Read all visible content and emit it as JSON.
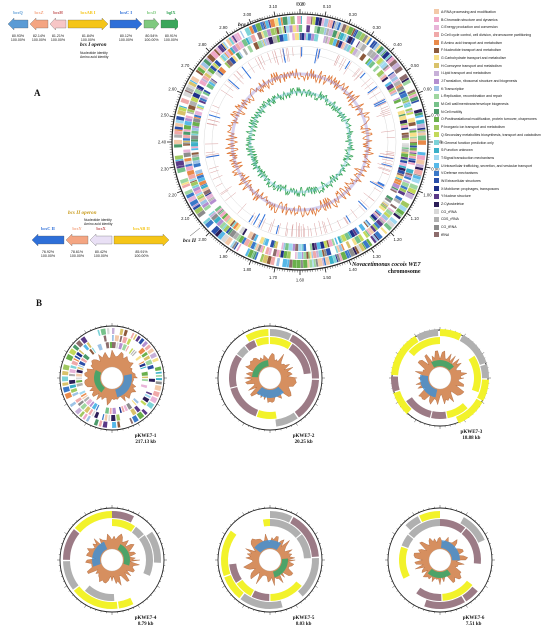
{
  "panel_a": {
    "label": "A",
    "operon_top": {
      "title": "bcs I operon",
      "identity_note_1": "Nucleotide identity",
      "identity_note_2": "Amino acid identity",
      "genes": [
        {
          "name": "bcsQ",
          "nt": "80.93%",
          "aa": "100.00%",
          "color": "#5a9bd5"
        },
        {
          "name": "bcsZ",
          "nt": "82.14%",
          "aa": "100.00%",
          "color": "#f4a582"
        },
        {
          "name": "bcsH",
          "nt": "81.21%",
          "aa": "100.00%",
          "color": "#f7c6c6"
        },
        {
          "name": "bcsAB I",
          "nt": "81.84%",
          "aa": "100.00%",
          "color": "#f5c518"
        },
        {
          "name": "bcsC I",
          "nt": "80.12%",
          "aa": "100.00%",
          "color": "#2e6fd8"
        },
        {
          "name": "bcsD",
          "nt": "80.54%",
          "aa": "100.00%",
          "color": "#7fc97f"
        },
        {
          "name": "bglX",
          "nt": "80.91%",
          "aa": "100.00%",
          "color": "#3aa65a"
        }
      ]
    },
    "operon_bottom": {
      "title": "bcs II operon",
      "identity_note_1": "Nucleotide identity",
      "identity_note_2": "Amino acid identity",
      "genes": [
        {
          "name": "bcsC II",
          "nt": "76.92%",
          "aa": "100.00%",
          "color": "#2e6fd8"
        },
        {
          "name": "bcsY",
          "nt": "78.61%",
          "aa": "100.00%",
          "color": "#f4a582"
        },
        {
          "name": "bcsX",
          "nt": "80.42%",
          "aa": "100.00%",
          "color": "#e9e0f5"
        },
        {
          "name": "bcsAB II",
          "nt": "85.91%",
          "aa": "100.00%",
          "color": "#f5c518"
        }
      ]
    },
    "circle_labels": {
      "top": "bcs I",
      "bottom": "bcs II"
    },
    "tick_labels": [
      "3.20",
      "0.00",
      "0.10",
      "0.20",
      "0.30",
      "0.40",
      "0.50",
      "0.60",
      "0.70",
      "0.80",
      "0.90",
      "1.00",
      "1.10",
      "1.20",
      "1.30",
      "1.40",
      "1.50",
      "1.60",
      "1.70",
      "1.80",
      "1.90",
      "2.00",
      "2.10",
      "2.20",
      "2.30",
      "2.40",
      "2.50",
      "2.60",
      "2.70",
      "2.80",
      "2.90",
      "3.00",
      "3.10"
    ],
    "organism_line1": "Novacetimonas cocois WE7",
    "organism_line2": "chromosome"
  },
  "legend": [
    {
      "label": "A:RNA processing and modification",
      "color": "#f3c9a8"
    },
    {
      "label": "B:Chromatin structure and dynamics",
      "color": "#f0a8c8"
    },
    {
      "label": "C:Energy production and conversion",
      "color": "#e8b4d8"
    },
    {
      "label": "D:Cell cycle control, cell division, chromosome partitioning",
      "color": "#f0a9a9"
    },
    {
      "label": "E:Amino acid transport and metabolism",
      "color": "#e98a4a"
    },
    {
      "label": "F:Nucleotide transport and metabolism",
      "color": "#8c5a3c"
    },
    {
      "label": "G:Carbohydrate transport and metabolism",
      "color": "#f7e08a"
    },
    {
      "label": "H:Coenzyme transport and metabolism",
      "color": "#d9c26a"
    },
    {
      "label": "I:Lipid transport and metabolism",
      "color": "#c7b0d8"
    },
    {
      "label": "J:Translation, ribosomal structure and biogenesis",
      "color": "#b48fd0"
    },
    {
      "label": "K:Transcription",
      "color": "#9dc3e6"
    },
    {
      "label": "L:Replication, recombination and repair",
      "color": "#9ed6a0"
    },
    {
      "label": "M:Cell wall/membrane/envelope biogenesis",
      "color": "#77c28a"
    },
    {
      "label": "N:Cell motility",
      "color": "#4c9a6a"
    },
    {
      "label": "O:Posttranslational modification, protein turnover, chaperones",
      "color": "#6ab04c"
    },
    {
      "label": "P:Inorganic ion transport and metabolism",
      "color": "#a0c860"
    },
    {
      "label": "Q:Secondary metabolites biosynthesis, transport and catabolism",
      "color": "#c3d95a"
    },
    {
      "label": "R:General function prediction only",
      "color": "#7dd3d8"
    },
    {
      "label": "S:Function unknown",
      "color": "#3ab0c8"
    },
    {
      "label": "T:Signal transduction mechanisms",
      "color": "#9fd8f0"
    },
    {
      "label": "U:Intracellular trafficking, secretion, and vesicular transport",
      "color": "#56b8e8"
    },
    {
      "label": "V:Defense mechanisms",
      "color": "#3a78c8"
    },
    {
      "label": "W:Extracellular structures",
      "color": "#2a4ea8"
    },
    {
      "label": "X:Mobilome: prophages, transposons",
      "color": "#1e2f88"
    },
    {
      "label": "Y:Nuclear structure",
      "color": "#5a3a88"
    },
    {
      "label": "Z:Cytoskeleton",
      "color": "#2c1e58"
    },
    {
      "label": "CG_rRNA",
      "color": "#d8d8d8"
    },
    {
      "label": "CDS_rRNA",
      "color": "#b0b0b0"
    },
    {
      "label": "CG_tRNA",
      "color": "#8c8c8c"
    },
    {
      "label": "tRNA",
      "color": "#8c6c6c"
    }
  ],
  "panel_b": {
    "label": "B",
    "plasmids": [
      {
        "name": "pKWE7-1",
        "size": "217.13 kb"
      },
      {
        "name": "pKWE7-2",
        "size": "20.25 kb"
      },
      {
        "name": "pKWE7-3",
        "size": "18.88 kb"
      },
      {
        "name": "pKWE7-4",
        "size": "8.79 kb"
      },
      {
        "name": "pKWE7-5",
        "size": "8.03 kb"
      },
      {
        "name": "pKWE7-6",
        "size": "7.51 kb"
      }
    ]
  }
}
